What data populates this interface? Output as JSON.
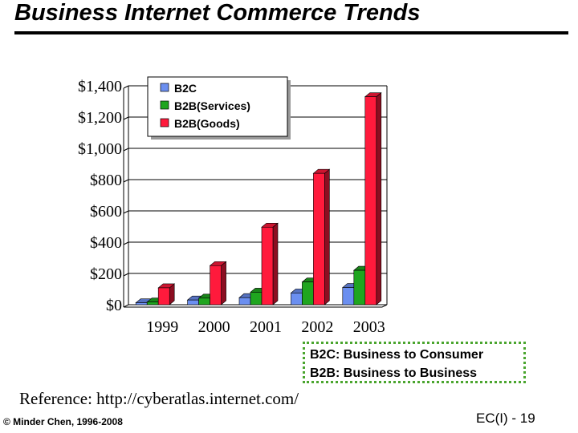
{
  "slide": {
    "title": "Business Internet Commerce Trends",
    "note_lines": [
      "B2C: Business to Consumer",
      "B2B: Business to Business"
    ],
    "reference": "Reference: http://cyberatlas.internet.com/",
    "copyright": "© Minder Chen, 1996-2008",
    "slide_number": "EC(I) - 19"
  },
  "chart_data": {
    "type": "bar",
    "title": "",
    "xlabel": "",
    "ylabel": "",
    "categories": [
      "1999",
      "2000",
      "2001",
      "2002",
      "2003"
    ],
    "ylim": [
      0,
      1400
    ],
    "yticks": [
      0,
      200,
      400,
      600,
      800,
      1000,
      1200,
      1400
    ],
    "ytick_labels": [
      "$0",
      "$200",
      "$400",
      "$600",
      "$800",
      "$1,000",
      "$1,200",
      "$1,400"
    ],
    "grid": true,
    "legend_position": "top-left",
    "series": [
      {
        "name": "B2C",
        "color": "#6b8ff0",
        "values": [
          12,
          30,
          45,
          75,
          110
        ]
      },
      {
        "name": "B2B(Services)",
        "color": "#1fa51f",
        "values": [
          17,
          42,
          80,
          145,
          220
        ]
      },
      {
        "name": "B2B(Goods)",
        "color": "#ff1a3c",
        "values": [
          108,
          250,
          496,
          840,
          1330
        ]
      }
    ]
  }
}
